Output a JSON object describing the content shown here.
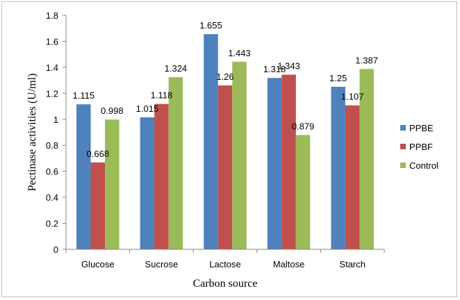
{
  "chart_data": {
    "type": "bar",
    "title": "",
    "xlabel": "Carbon source",
    "ylabel": "Pectinase activities (U/ml)",
    "categories": [
      "Glucose",
      "Sucrose",
      "Lactose",
      "Maltose",
      "Starch"
    ],
    "series": [
      {
        "name": "PPBE",
        "color": "#4f81bd",
        "values": [
          1.115,
          1.015,
          1.655,
          1.318,
          1.25
        ]
      },
      {
        "name": "PPBF",
        "color": "#c0504d",
        "values": [
          0.668,
          1.118,
          1.26,
          1.343,
          1.107
        ]
      },
      {
        "name": "Control",
        "color": "#9bbb59",
        "values": [
          0.998,
          1.324,
          1.443,
          0.879,
          1.387
        ]
      }
    ],
    "ylim": [
      0,
      1.8
    ],
    "yticks": [
      "0",
      "0.2",
      "0.4",
      "0.6",
      "0.8",
      "1",
      "1.2",
      "1.4",
      "1.6",
      "1.8"
    ],
    "grid": false,
    "legend_position": "right"
  }
}
